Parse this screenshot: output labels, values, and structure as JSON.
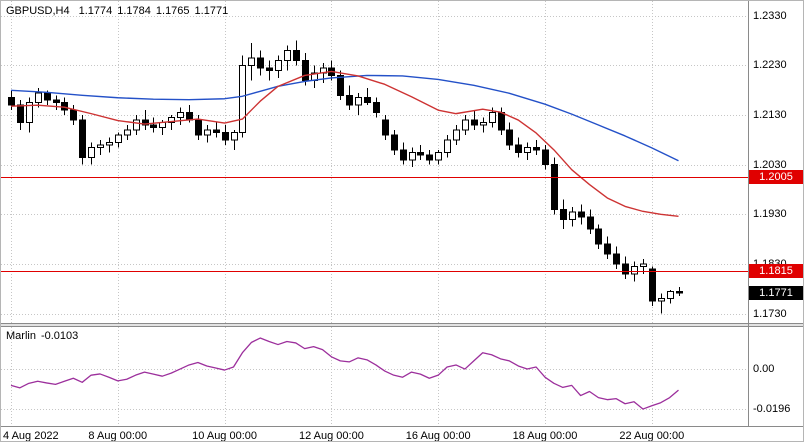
{
  "header": {
    "symbol_period": "GBPUSD,H4",
    "open": "1.1774",
    "high": "1.1784",
    "low": "1.1765",
    "close": "1.1771"
  },
  "colors": {
    "background": "#ffffff",
    "grid": "#c6c6c6",
    "bull_candle": "#ffffff",
    "bear_candle": "#000000",
    "candle_outline": "#000000",
    "ma_slow": "#2451c8",
    "ma_fast": "#cd3333",
    "indicator_line": "#9c2f9c",
    "level_line": "#e00000",
    "level_badge": "#e00000",
    "current_badge": "#000000",
    "pane_border": "#8a8a8a",
    "text": "#000000"
  },
  "chart_data": {
    "type": "candlestick",
    "symbol": "GBPUSD",
    "timeframe": "H4",
    "y_axis": {
      "max": 1.236,
      "min": 1.1711,
      "ticks": [
        "1.2330",
        "1.2230",
        "1.2130",
        "1.2030",
        "1.1930",
        "1.1830",
        "1.1730"
      ]
    },
    "x_axis": {
      "labels": [
        {
          "index": 0,
          "text": "4 Aug 2022"
        },
        {
          "index": 12,
          "text": "8 Aug 00:00"
        },
        {
          "index": 24,
          "text": "10 Aug 00:00"
        },
        {
          "index": 36,
          "text": "12 Aug 00:00"
        },
        {
          "index": 48,
          "text": "16 Aug 00:00"
        },
        {
          "index": 60,
          "text": "18 Aug 00:00"
        },
        {
          "index": 72,
          "text": "22 Aug 00:00"
        }
      ]
    },
    "candles": [
      [
        1.2165,
        1.218,
        1.214,
        1.215
      ],
      [
        1.215,
        1.216,
        1.21,
        1.2115
      ],
      [
        1.2115,
        1.2165,
        1.2095,
        1.2155
      ],
      [
        1.2155,
        1.2185,
        1.2145,
        1.2175
      ],
      [
        1.2175,
        1.218,
        1.215,
        1.216
      ],
      [
        1.216,
        1.217,
        1.214,
        1.2155
      ],
      [
        1.2155,
        1.2165,
        1.213,
        1.214
      ],
      [
        1.214,
        1.215,
        1.211,
        1.212
      ],
      [
        1.212,
        1.213,
        1.203,
        1.2045
      ],
      [
        1.2045,
        1.2075,
        1.203,
        1.2065
      ],
      [
        1.2065,
        1.208,
        1.205,
        1.207
      ],
      [
        1.207,
        1.2085,
        1.2055,
        1.2075
      ],
      [
        1.2075,
        1.2095,
        1.2065,
        1.209
      ],
      [
        1.209,
        1.211,
        1.208,
        1.21
      ],
      [
        1.21,
        1.213,
        1.209,
        1.212
      ],
      [
        1.212,
        1.214,
        1.21,
        1.211
      ],
      [
        1.211,
        1.2125,
        1.2095,
        1.2105
      ],
      [
        1.2105,
        1.212,
        1.209,
        1.2115
      ],
      [
        1.2115,
        1.213,
        1.21,
        1.2125
      ],
      [
        1.2125,
        1.2145,
        1.211,
        1.2135
      ],
      [
        1.2135,
        1.215,
        1.2115,
        1.212
      ],
      [
        1.212,
        1.213,
        1.208,
        1.209
      ],
      [
        1.209,
        1.211,
        1.2075,
        1.21
      ],
      [
        1.21,
        1.2115,
        1.2085,
        1.2095
      ],
      [
        1.2095,
        1.211,
        1.207,
        1.208
      ],
      [
        1.208,
        1.21,
        1.206,
        1.2095
      ],
      [
        1.2095,
        1.225,
        1.2085,
        1.223
      ],
      [
        1.223,
        1.2275,
        1.22,
        1.2245
      ],
      [
        1.2245,
        1.226,
        1.221,
        1.2225
      ],
      [
        1.2225,
        1.224,
        1.22,
        1.222
      ],
      [
        1.222,
        1.225,
        1.2205,
        1.224
      ],
      [
        1.224,
        1.227,
        1.222,
        1.226
      ],
      [
        1.226,
        1.228,
        1.223,
        1.224
      ],
      [
        1.224,
        1.2255,
        1.219,
        1.22
      ],
      [
        1.22,
        1.223,
        1.2185,
        1.2215
      ],
      [
        1.2215,
        1.2235,
        1.2195,
        1.2225
      ],
      [
        1.2225,
        1.224,
        1.22,
        1.221
      ],
      [
        1.221,
        1.222,
        1.216,
        1.217
      ],
      [
        1.217,
        1.219,
        1.214,
        1.215
      ],
      [
        1.215,
        1.2175,
        1.213,
        1.2165
      ],
      [
        1.2165,
        1.2185,
        1.215,
        1.2155
      ],
      [
        1.2155,
        1.2165,
        1.2125,
        1.2135
      ],
      [
        1.212,
        1.213,
        1.208,
        1.209
      ],
      [
        1.209,
        1.21,
        1.205,
        1.206
      ],
      [
        1.206,
        1.2075,
        1.203,
        1.204
      ],
      [
        1.204,
        1.2065,
        1.2025,
        1.2055
      ],
      [
        1.2055,
        1.207,
        1.204,
        1.205
      ],
      [
        1.205,
        1.206,
        1.203,
        1.204
      ],
      [
        1.204,
        1.206,
        1.203,
        1.2055
      ],
      [
        1.2055,
        1.209,
        1.2045,
        1.208
      ],
      [
        1.208,
        1.211,
        1.207,
        1.21
      ],
      [
        1.21,
        1.213,
        1.209,
        1.212
      ],
      [
        1.212,
        1.214,
        1.21,
        1.211
      ],
      [
        1.211,
        1.2125,
        1.2095,
        1.2115
      ],
      [
        1.2115,
        1.2145,
        1.2105,
        1.2135
      ],
      [
        1.2135,
        1.2145,
        1.209,
        1.21
      ],
      [
        1.21,
        1.2115,
        1.206,
        1.207
      ],
      [
        1.207,
        1.2085,
        1.2045,
        1.2055
      ],
      [
        1.2055,
        1.2075,
        1.204,
        1.2065
      ],
      [
        1.2065,
        1.208,
        1.205,
        1.206
      ],
      [
        1.206,
        1.207,
        1.202,
        1.203
      ],
      [
        1.203,
        1.2045,
        1.193,
        1.194
      ],
      [
        1.194,
        1.196,
        1.19,
        1.192
      ],
      [
        1.192,
        1.1945,
        1.1905,
        1.1935
      ],
      [
        1.1935,
        1.195,
        1.191,
        1.1925
      ],
      [
        1.1925,
        1.194,
        1.189,
        1.19
      ],
      [
        1.19,
        1.191,
        1.186,
        1.187
      ],
      [
        1.187,
        1.1885,
        1.184,
        1.185
      ],
      [
        1.185,
        1.1865,
        1.182,
        1.183
      ],
      [
        1.183,
        1.1845,
        1.18,
        1.181
      ],
      [
        1.181,
        1.1835,
        1.1795,
        1.1825
      ],
      [
        1.1825,
        1.184,
        1.181,
        1.183
      ],
      [
        1.182,
        1.1825,
        1.1745,
        1.1755
      ],
      [
        1.1755,
        1.177,
        1.173,
        1.176
      ],
      [
        1.176,
        1.1778,
        1.175,
        1.1774
      ],
      [
        1.1774,
        1.1784,
        1.1765,
        1.1771
      ]
    ],
    "overlays": {
      "ma_slow": {
        "name": "slow moving average (blue)",
        "points": [
          [
            0,
            1.218
          ],
          [
            4,
            1.2176
          ],
          [
            8,
            1.217
          ],
          [
            12,
            1.2165
          ],
          [
            16,
            1.2162
          ],
          [
            20,
            1.2161
          ],
          [
            24,
            1.2163
          ],
          [
            26,
            1.2168
          ],
          [
            28,
            1.2178
          ],
          [
            30,
            1.2188
          ],
          [
            33,
            1.2198
          ],
          [
            36,
            1.2205
          ],
          [
            40,
            1.221
          ],
          [
            44,
            1.2209
          ],
          [
            48,
            1.2202
          ],
          [
            52,
            1.219
          ],
          [
            56,
            1.2174
          ],
          [
            60,
            1.2152
          ],
          [
            63,
            1.2132
          ],
          [
            66,
            1.211
          ],
          [
            69,
            1.2088
          ],
          [
            72,
            1.2064
          ],
          [
            75,
            1.2038
          ]
        ]
      },
      "ma_fast": {
        "name": "fast moving average (red)",
        "points": [
          [
            0,
            1.2148
          ],
          [
            3,
            1.215
          ],
          [
            6,
            1.2146
          ],
          [
            9,
            1.2133
          ],
          [
            12,
            1.2119
          ],
          [
            15,
            1.2112
          ],
          [
            18,
            1.2117
          ],
          [
            21,
            1.2122
          ],
          [
            24,
            1.2114
          ],
          [
            26,
            1.2122
          ],
          [
            28,
            1.2158
          ],
          [
            30,
            1.2188
          ],
          [
            33,
            1.221
          ],
          [
            36,
            1.2218
          ],
          [
            39,
            1.2209
          ],
          [
            42,
            1.2192
          ],
          [
            45,
            1.2167
          ],
          [
            48,
            1.214
          ],
          [
            50,
            1.2133
          ],
          [
            53,
            1.2142
          ],
          [
            55,
            1.2136
          ],
          [
            57,
            1.212
          ],
          [
            59,
            1.2094
          ],
          [
            61,
            1.206
          ],
          [
            63,
            1.202
          ],
          [
            65,
            1.199
          ],
          [
            67,
            1.1963
          ],
          [
            69,
            1.1946
          ],
          [
            71,
            1.1936
          ],
          [
            73,
            1.193
          ],
          [
            75,
            1.1926
          ]
        ]
      }
    },
    "levels": [
      {
        "price": 1.2005,
        "label": "1.2005"
      },
      {
        "price": 1.1815,
        "label": "1.1815"
      }
    ],
    "current_price": {
      "price": 1.1771,
      "label": "1.1771"
    },
    "indicator": {
      "name": "Marlin",
      "current_value": "-0.0103",
      "axis": {
        "max": 0.0206,
        "min": -0.0279,
        "ticks": [
          {
            "label": "0.00",
            "value": 0.0
          },
          {
            "label": "-0.0196",
            "value": -0.0196
          }
        ]
      },
      "values": [
        -0.008,
        -0.0092,
        -0.007,
        -0.006,
        -0.0068,
        -0.0075,
        -0.006,
        -0.0045,
        -0.0065,
        -0.003,
        -0.0024,
        -0.004,
        -0.0058,
        -0.005,
        -0.003,
        -0.0015,
        -0.0025,
        -0.0035,
        -0.002,
        0.0,
        0.002,
        0.0032,
        0.0015,
        0.0005,
        -0.0005,
        0.001,
        0.008,
        0.013,
        0.0152,
        0.0135,
        0.012,
        0.0135,
        0.0128,
        0.01,
        0.011,
        0.0095,
        0.006,
        0.004,
        0.0035,
        0.0055,
        0.0045,
        0.002,
        -0.001,
        -0.003,
        -0.004,
        -0.0015,
        -0.0025,
        -0.0045,
        -0.003,
        0.001,
        0.002,
        0.0,
        0.004,
        0.008,
        0.007,
        0.005,
        0.004,
        0.0015,
        0.0,
        0.001,
        -0.004,
        -0.007,
        -0.009,
        -0.008,
        -0.013,
        -0.011,
        -0.014,
        -0.015,
        -0.0145,
        -0.017,
        -0.016,
        -0.0196,
        -0.018,
        -0.0165,
        -0.014,
        -0.0103
      ]
    }
  }
}
